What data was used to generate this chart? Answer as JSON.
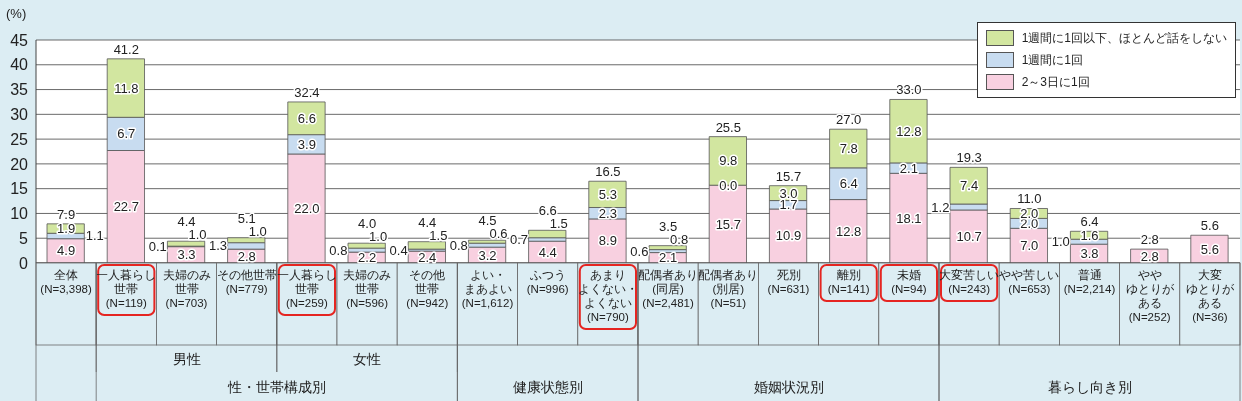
{
  "chart_data": {
    "type": "bar",
    "stacked": true,
    "ylabel": "(%)",
    "ylim": [
      0,
      45
    ],
    "yticks": [
      0,
      5,
      10,
      15,
      20,
      25,
      30,
      35,
      40,
      45
    ],
    "grid": "y",
    "legend": "top right",
    "categories": [
      "全体(N=3,398)",
      "一人暮らし世帯(N=119)",
      "夫婦のみ世帯(N=703)",
      "その他世帯(N=779)",
      "一人暮らし世帯(N=259)",
      "夫婦のみ世帯(N=596)",
      "その他世帯(N=942)",
      "よい・まあよい(N=1,612)",
      "ふつう(N=996)",
      "あまりよくない・よくない(N=790)",
      "配偶者あり(同居)(N=2,481)",
      "配偶者あり(別居)(N=51)",
      "死別(N=631)",
      "離別(N=141)",
      "未婚(N=94)",
      "大変苦しい(N=243)",
      "やや苦しい(N=653)",
      "普通(N=2,214)",
      "ややゆとりがある(N=252)",
      "大変ゆとりがある(N=36)"
    ],
    "series": [
      {
        "name": "2～3日に1回",
        "color": "#f8d0e0",
        "values": [
          4.9,
          22.7,
          3.3,
          2.8,
          22.0,
          2.2,
          2.4,
          3.2,
          4.4,
          8.9,
          2.1,
          15.7,
          10.9,
          12.8,
          18.1,
          10.7,
          7.0,
          3.8,
          2.8,
          5.6
        ],
        "value_labels": [
          "4.9",
          "22.7",
          "3.3",
          "2.8",
          "22.0",
          "2.2",
          "2.4",
          "3.2",
          "4.4",
          "8.9",
          "2.1",
          "15.7",
          "10.9",
          "12.8",
          "18.1",
          "10.7",
          "7.0",
          "3.8",
          "2.8",
          "5.6"
        ]
      },
      {
        "name": "1週間に1回",
        "color": "#c8dcf0",
        "values": [
          1.1,
          6.7,
          0.1,
          1.3,
          3.9,
          0.8,
          0.4,
          0.8,
          0.7,
          2.3,
          0.6,
          0.0,
          1.7,
          6.4,
          2.1,
          1.2,
          2.0,
          1.0,
          0,
          0
        ],
        "value_labels": [
          "1.1",
          "6.7",
          "0.1",
          "1.3",
          "3.9",
          "0.8",
          "0.4",
          "0.8",
          "0.7",
          "2.3",
          "0.6",
          "0.0",
          "1.7",
          "6.4",
          "2.1",
          "1.2",
          "2.0",
          "1.0",
          null,
          null
        ]
      },
      {
        "name": "1週間に1回以下、ほとんど話をしない",
        "color": "#d2e6a0",
        "values": [
          1.9,
          11.8,
          1.0,
          1.0,
          6.6,
          1.0,
          1.5,
          0.6,
          1.5,
          5.3,
          0.8,
          9.8,
          3.0,
          7.8,
          12.8,
          7.4,
          2.0,
          1.6,
          0,
          0
        ],
        "value_labels": [
          "1.9",
          "11.8",
          "1.0",
          "1.0",
          "6.6",
          "1.0",
          "1.5",
          "0.6",
          "1.5",
          "5.3",
          "0.8",
          "9.8",
          "3.0",
          "7.8",
          "12.8",
          "7.4",
          "2.0",
          "1.6",
          null,
          null
        ]
      }
    ],
    "totals": [
      "7.9",
      "41.2",
      "4.4",
      "5.1",
      "32.4",
      "4.0",
      "4.4",
      "4.5",
      "6.6",
      "16.5",
      "3.5",
      "25.5",
      "15.7",
      "27.0",
      "33.0",
      "19.3",
      "11.0",
      "6.4",
      "2.8",
      "5.6"
    ],
    "annotations": [
      "男性",
      "女性",
      "性・世帯構成別",
      "健康状態別",
      "婚姻状況別",
      "暮らし向き別"
    ]
  }
}
